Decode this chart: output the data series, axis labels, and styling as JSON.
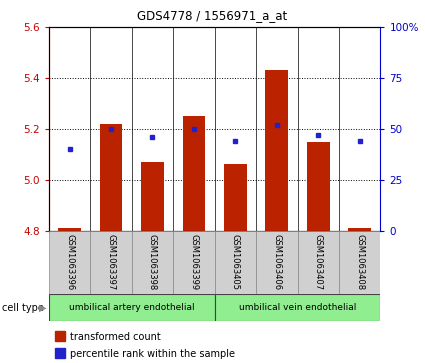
{
  "title": "GDS4778 / 1556971_a_at",
  "samples": [
    "GSM1063396",
    "GSM1063397",
    "GSM1063398",
    "GSM1063399",
    "GSM1063405",
    "GSM1063406",
    "GSM1063407",
    "GSM1063408"
  ],
  "transformed_count": [
    4.81,
    5.22,
    5.07,
    5.25,
    5.06,
    5.43,
    5.15,
    4.81
  ],
  "percentile_rank": [
    40,
    50,
    46,
    50,
    44,
    52,
    47,
    44
  ],
  "ylim_left": [
    4.8,
    5.6
  ],
  "yticks_left": [
    4.8,
    5.0,
    5.2,
    5.4,
    5.6
  ],
  "ylim_right": [
    0,
    100
  ],
  "yticks_right": [
    0,
    25,
    50,
    75,
    100
  ],
  "yticklabels_right": [
    "0",
    "25",
    "50",
    "75",
    "100%"
  ],
  "bar_color": "#BB2200",
  "dot_color": "#2222CC",
  "bar_width": 0.55,
  "cell_type1_label": "umbilical artery endothelial",
  "cell_type2_label": "umbilical vein endothelial",
  "cell_bg_color": "#90EE90",
  "sample_box_color": "#D0D0D0",
  "tick_color_left": "#CC0000",
  "tick_color_right": "#0000CC",
  "legend_tc": "transformed count",
  "legend_pr": "percentile rank within the sample",
  "cell_type_label": "cell type"
}
